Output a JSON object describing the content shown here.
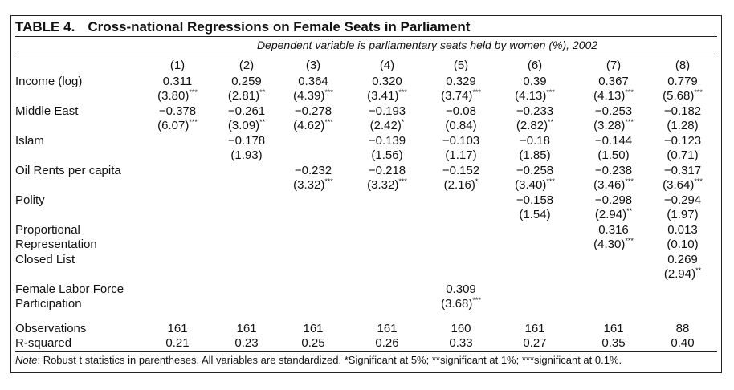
{
  "table": {
    "number": "TABLE 4.",
    "title": "Cross-national Regressions on Female Seats in Parliament",
    "dependent": "Dependent variable is parliamentary seats held by women (%), 2002",
    "columns": [
      "(1)",
      "(2)",
      "(3)",
      "(4)",
      "(5)",
      "(6)",
      "(7)",
      "(8)"
    ],
    "rows": [
      {
        "label": [
          "Income (log)"
        ],
        "cells": [
          [
            "0.311",
            "(3.80)***"
          ],
          [
            "0.259",
            "(2.81)**"
          ],
          [
            "0.364",
            "(4.39)***"
          ],
          [
            "0.320",
            "(3.41)***"
          ],
          [
            "0.329",
            "(3.74)***"
          ],
          [
            "0.39",
            "(4.13)***"
          ],
          [
            "0.367",
            "(4.13)***"
          ],
          [
            "0.779",
            "(5.68)***"
          ]
        ]
      },
      {
        "label": [
          "Middle East"
        ],
        "cells": [
          [
            "−0.378",
            "(6.07)***"
          ],
          [
            "−0.261",
            "(3.09)**"
          ],
          [
            "−0.278",
            "(4.62)***"
          ],
          [
            "−0.193",
            "(2.42)*"
          ],
          [
            "−0.08",
            "(0.84)"
          ],
          [
            "−0.233",
            "(2.82)**"
          ],
          [
            "−0.253",
            "(3.28)***"
          ],
          [
            "−0.182",
            "(1.28)"
          ]
        ]
      },
      {
        "label": [
          "Islam"
        ],
        "cells": [
          null,
          [
            "−0.178",
            "(1.93)"
          ],
          null,
          [
            "−0.139",
            "(1.56)"
          ],
          [
            "−0.103",
            "(1.17)"
          ],
          [
            "−0.18",
            "(1.85)"
          ],
          [
            "−0.144",
            "(1.50)"
          ],
          [
            "−0.123",
            "(0.71)"
          ]
        ]
      },
      {
        "label": [
          "Oil Rents per capita"
        ],
        "cells": [
          null,
          null,
          [
            "−0.232",
            "(3.32)***"
          ],
          [
            "−0.218",
            "(3.32)***"
          ],
          [
            "−0.152",
            "(2.16)*"
          ],
          [
            "−0.258",
            "(3.40)***"
          ],
          [
            "−0.238",
            "(3.46)***"
          ],
          [
            "−0.317",
            "(3.64)***"
          ]
        ]
      },
      {
        "label": [
          "Polity"
        ],
        "cells": [
          null,
          null,
          null,
          null,
          null,
          [
            "−0.158",
            "(1.54)"
          ],
          [
            "−0.298",
            "(2.94)**"
          ],
          [
            "−0.294",
            "(1.97)"
          ]
        ]
      },
      {
        "label": [
          "Proportional",
          "Representation"
        ],
        "cells": [
          null,
          null,
          null,
          null,
          null,
          null,
          [
            "0.316",
            "(4.30)***"
          ],
          [
            "0.013",
            "(0.10)"
          ]
        ]
      },
      {
        "label": [
          "Closed List"
        ],
        "cells": [
          null,
          null,
          null,
          null,
          null,
          null,
          null,
          [
            "0.269",
            "(2.94)**"
          ]
        ]
      },
      {
        "label": [
          "Female Labor Force",
          "Participation"
        ],
        "cells": [
          null,
          null,
          null,
          null,
          [
            "0.309",
            "(3.68)***"
          ],
          null,
          null,
          null
        ]
      }
    ],
    "observations": {
      "label": "Observations",
      "values": [
        "161",
        "161",
        "161",
        "161",
        "160",
        "161",
        "161",
        "88"
      ]
    },
    "rsquared": {
      "label": "R-squared",
      "values": [
        "0.21",
        "0.23",
        "0.25",
        "0.26",
        "0.33",
        "0.27",
        "0.35",
        "0.40"
      ]
    },
    "note_label": "Note",
    "note_text": ": Robust t statistics in parentheses. All variables are standardized. *Significant at 5%; **significant at 1%; ***significant at 0.1%."
  }
}
